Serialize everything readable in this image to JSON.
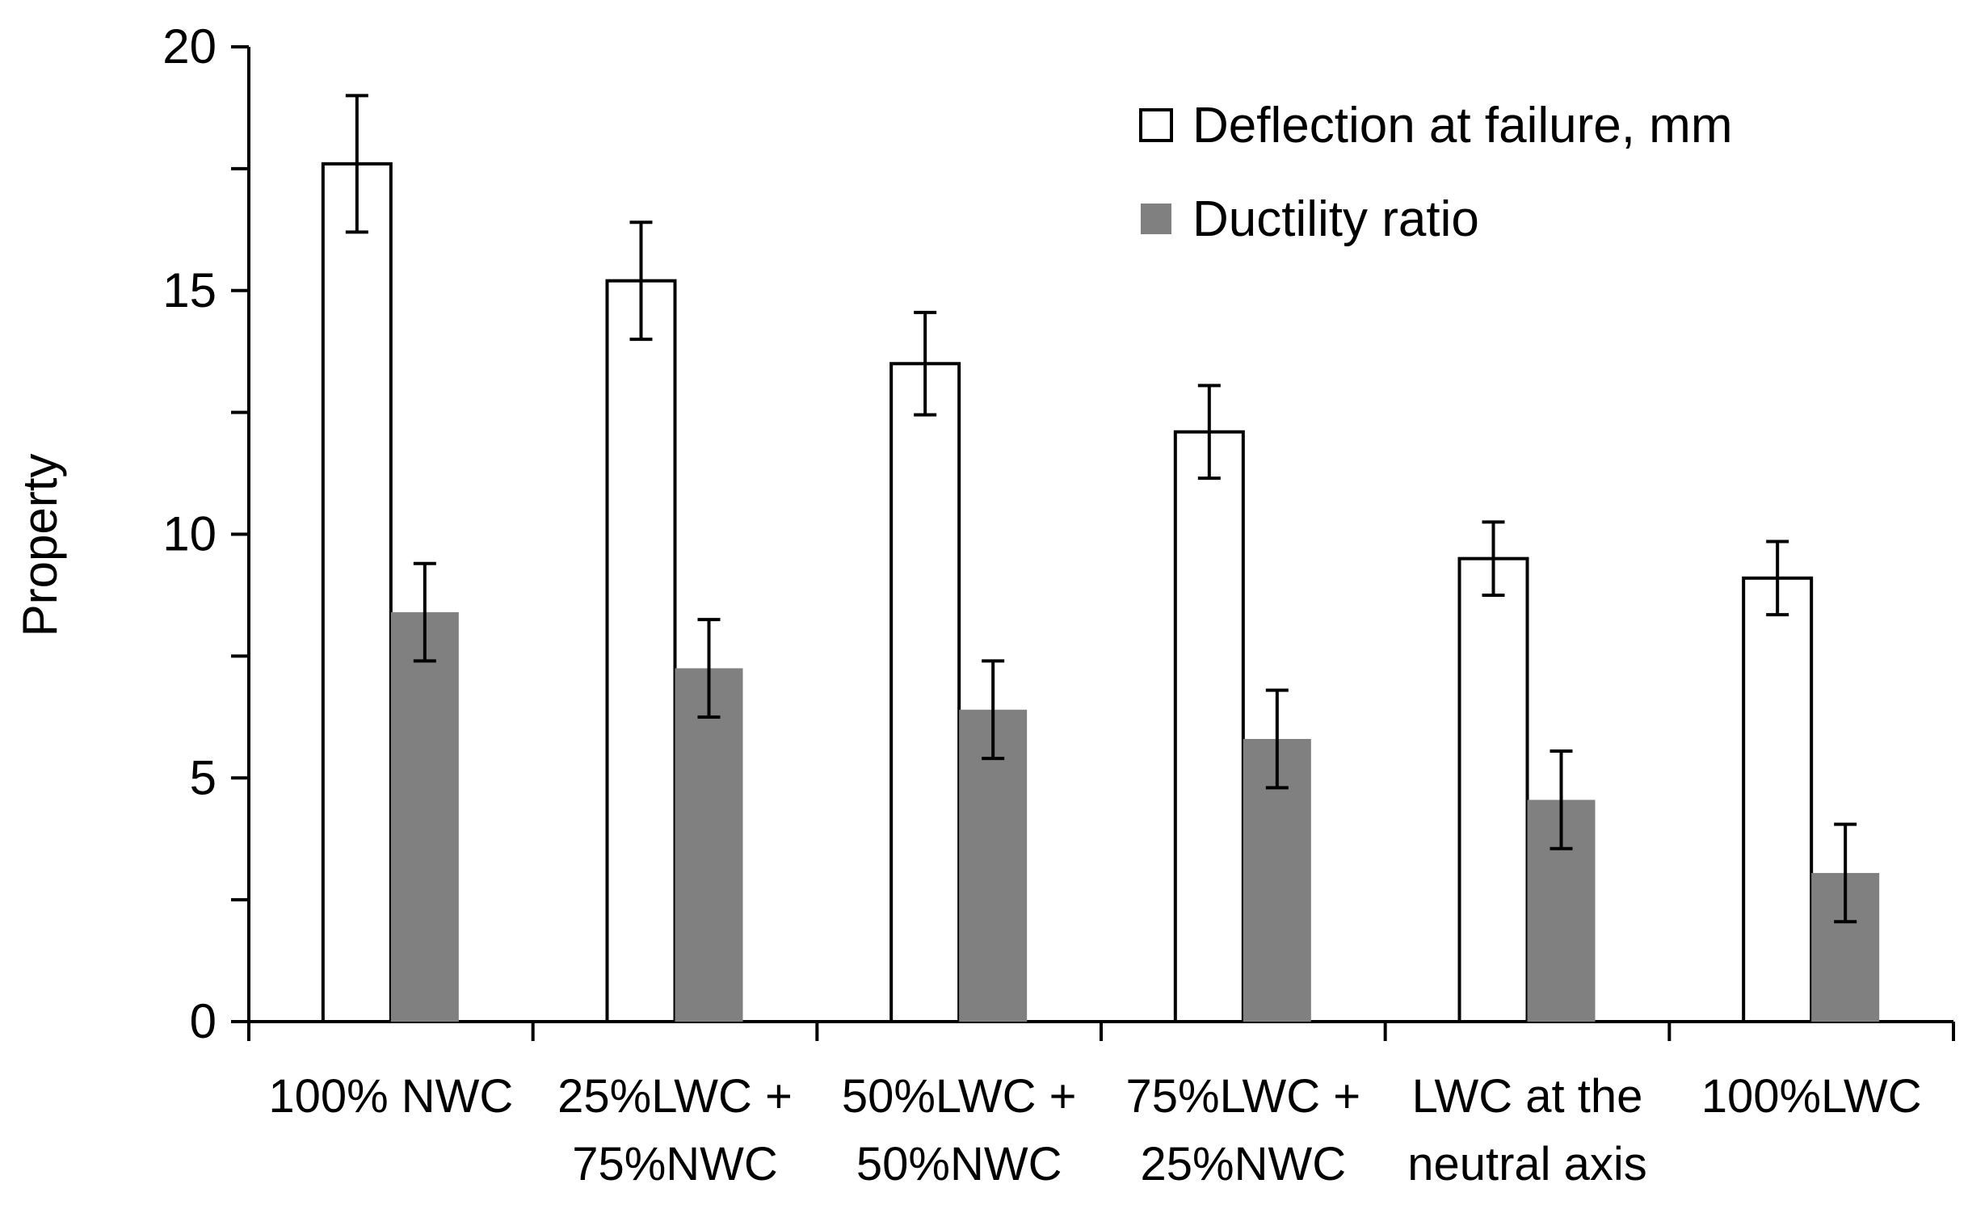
{
  "chart_data": {
    "type": "bar",
    "title": "",
    "xlabel": "",
    "ylabel": "Property",
    "ylim": [
      0,
      20
    ],
    "yticks": [
      0,
      5,
      10,
      15,
      20
    ],
    "y_tick_labels": [
      "0",
      "5",
      "10",
      "15",
      "20"
    ],
    "grid": false,
    "legend_position": "top-right",
    "categories": [
      [
        "100% NWC"
      ],
      [
        "25%LWC +",
        "75%NWC"
      ],
      [
        "50%LWC +",
        "50%NWC"
      ],
      [
        "75%LWC +",
        "25%NWC"
      ],
      [
        "LWC at the",
        "neutral axis"
      ],
      [
        "100%LWC"
      ]
    ],
    "series": [
      {
        "name": "Deflection at failure, mm",
        "fill": "#ffffff",
        "stroke": "#000000",
        "values": [
          17.6,
          15.2,
          13.5,
          12.1,
          9.5,
          9.1
        ],
        "errors": [
          1.4,
          1.2,
          1.05,
          0.95,
          0.75,
          0.75
        ]
      },
      {
        "name": "Ductility ratio",
        "fill": "#808080",
        "stroke": "none",
        "values": [
          8.4,
          7.25,
          6.4,
          5.8,
          4.55,
          3.05
        ],
        "errors": [
          1.0,
          1.0,
          1.0,
          1.0,
          1.0,
          1.0
        ]
      }
    ]
  }
}
